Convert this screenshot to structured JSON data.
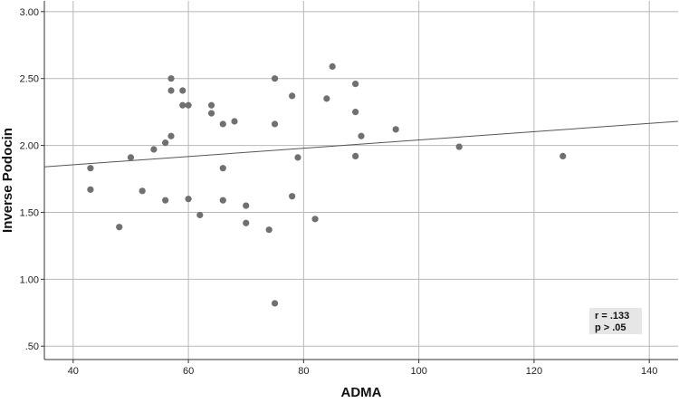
{
  "chart_data": {
    "type": "scatter",
    "xlabel": "ADMA",
    "ylabel": "Inverse Podocin",
    "xlim": [
      35,
      145
    ],
    "ylim": [
      0.4,
      3.08
    ],
    "x_ticks": [
      40,
      60,
      80,
      100,
      120,
      140
    ],
    "x_tick_labels": [
      "40",
      "60",
      "80",
      "100",
      "120",
      "140"
    ],
    "y_ticks": [
      0.5,
      1.0,
      1.5,
      2.0,
      2.5,
      3.0
    ],
    "y_tick_labels": [
      ".50",
      "1.00",
      "1.50",
      "2.00",
      "2.50",
      "3.00"
    ],
    "grid": true,
    "point_color": "#707070",
    "line_color": "#555555",
    "grid_color": "#b8b8b8",
    "annotation": {
      "line1": "r = .133",
      "line2": "p > .05",
      "position": "bottom-right"
    },
    "fit_line": {
      "x": [
        35,
        145
      ],
      "y": [
        1.84,
        2.18
      ]
    },
    "points": [
      {
        "x": 43,
        "y": 1.83
      },
      {
        "x": 43,
        "y": 1.67
      },
      {
        "x": 48,
        "y": 1.39
      },
      {
        "x": 50,
        "y": 1.91
      },
      {
        "x": 52,
        "y": 1.66
      },
      {
        "x": 54,
        "y": 1.97
      },
      {
        "x": 56,
        "y": 2.02
      },
      {
        "x": 56,
        "y": 1.59
      },
      {
        "x": 57,
        "y": 2.5
      },
      {
        "x": 57,
        "y": 2.41
      },
      {
        "x": 57,
        "y": 2.07
      },
      {
        "x": 59,
        "y": 2.41
      },
      {
        "x": 59,
        "y": 2.3
      },
      {
        "x": 60,
        "y": 2.3
      },
      {
        "x": 60,
        "y": 1.6
      },
      {
        "x": 62,
        "y": 1.48
      },
      {
        "x": 64,
        "y": 2.3
      },
      {
        "x": 64,
        "y": 2.24
      },
      {
        "x": 66,
        "y": 2.16
      },
      {
        "x": 66,
        "y": 1.83
      },
      {
        "x": 66,
        "y": 1.59
      },
      {
        "x": 68,
        "y": 2.18
      },
      {
        "x": 70,
        "y": 1.55
      },
      {
        "x": 70,
        "y": 1.42
      },
      {
        "x": 74,
        "y": 1.37
      },
      {
        "x": 75,
        "y": 2.5
      },
      {
        "x": 75,
        "y": 2.16
      },
      {
        "x": 75,
        "y": 0.82
      },
      {
        "x": 78,
        "y": 2.37
      },
      {
        "x": 78,
        "y": 1.62
      },
      {
        "x": 79,
        "y": 1.91
      },
      {
        "x": 82,
        "y": 1.45
      },
      {
        "x": 84,
        "y": 2.35
      },
      {
        "x": 85,
        "y": 2.59
      },
      {
        "x": 89,
        "y": 2.46
      },
      {
        "x": 89,
        "y": 2.25
      },
      {
        "x": 89,
        "y": 1.92
      },
      {
        "x": 90,
        "y": 2.07
      },
      {
        "x": 96,
        "y": 2.12
      },
      {
        "x": 107,
        "y": 1.99
      },
      {
        "x": 125,
        "y": 1.92
      }
    ]
  }
}
